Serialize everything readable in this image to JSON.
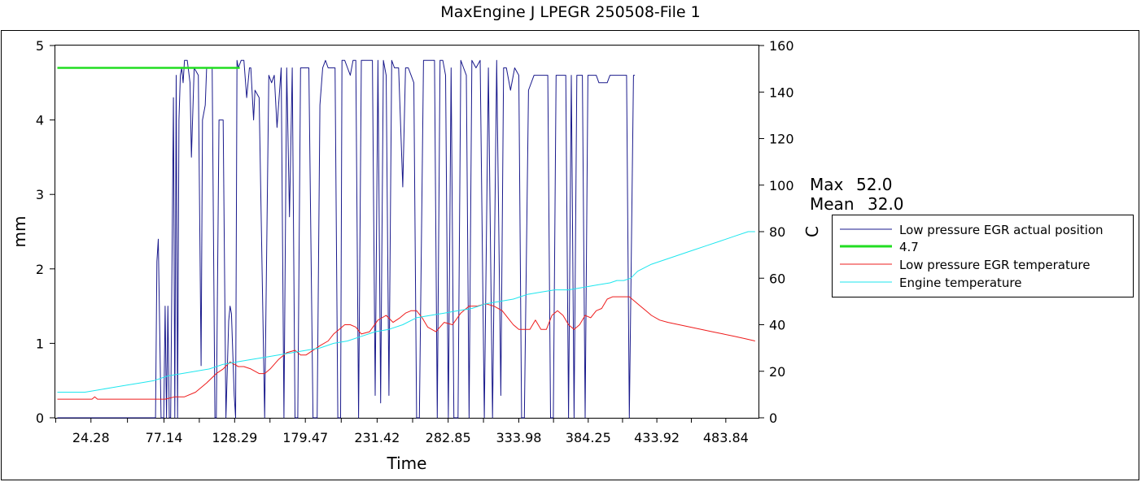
{
  "chart_data": {
    "type": "line",
    "title": "MaxEngine J LPEGR 250508-File 1",
    "xlabel": "Time",
    "ylabel_left": "mm",
    "ylabel_right": "C",
    "xlim": [
      -1.5,
      507.5
    ],
    "ylim_left": [
      0,
      5
    ],
    "ylim_right": [
      0,
      160
    ],
    "x_ticks": [
      24.28,
      77.14,
      128.29,
      179.47,
      231.42,
      282.85,
      333.98,
      384.25,
      433.92,
      483.84
    ],
    "x_tick_labels": [
      "24.28",
      "77.14",
      "128.29",
      "179.47",
      "231.42",
      "282.85",
      "333.98",
      "384.25",
      "433.92",
      "483.84"
    ],
    "y_ticks_left": [
      0,
      1,
      2,
      3,
      4,
      5
    ],
    "y_ticks_right": [
      0,
      20,
      40,
      60,
      80,
      100,
      120,
      140,
      160
    ],
    "grid": false,
    "legend_position": "right",
    "stats": [
      {
        "label": "Max",
        "value": "52.0"
      },
      {
        "label": "Mean",
        "value": "32.0"
      }
    ],
    "series": [
      {
        "name": "Low pressure EGR actual position",
        "axis": "left",
        "color": "#1a1a8c",
        "x": [
          0,
          70,
          71,
          72,
          73,
          75,
          77,
          78,
          79,
          80,
          81,
          82,
          84,
          85,
          86,
          87,
          88,
          89,
          90,
          91,
          92,
          94,
          96,
          97,
          99,
          102,
          104,
          105,
          107,
          108,
          110,
          112,
          114,
          115,
          117,
          120,
          122,
          124,
          125,
          126,
          128,
          129,
          130,
          131,
          133,
          135,
          137,
          139,
          140,
          142,
          143,
          146,
          150,
          153,
          155,
          157,
          159,
          162,
          164,
          166,
          168,
          170,
          172,
          174,
          176,
          178,
          180,
          182,
          185,
          188,
          190,
          192,
          194,
          196,
          198,
          201,
          203,
          205,
          206,
          208,
          210,
          212,
          214,
          216,
          218,
          220,
          224,
          228,
          230,
          232,
          234,
          236,
          238,
          240,
          242,
          244,
          247,
          250,
          252,
          254,
          256,
          258,
          260,
          262,
          265,
          267,
          269,
          271,
          273,
          275,
          277,
          279,
          281,
          283,
          285,
          287,
          290,
          292,
          294,
          296,
          298,
          300,
          303,
          306,
          309,
          312,
          315,
          318,
          321,
          323,
          325,
          328,
          331,
          334,
          336,
          338,
          341,
          345,
          349,
          353,
          355,
          357,
          359,
          361,
          363,
          365,
          368,
          370,
          372,
          374,
          376,
          378,
          380,
          382,
          384,
          386,
          388,
          390,
          392,
          394,
          396,
          398,
          400,
          402,
          404,
          406,
          408,
          410,
          412,
          414,
          417,
          418
        ],
        "values": [
          0,
          0,
          0,
          2.1,
          2.4,
          0,
          0,
          1.5,
          0,
          1.5,
          0,
          0,
          4.3,
          0,
          4.6,
          0,
          4.0,
          4.6,
          4.7,
          4.5,
          4.8,
          4.8,
          4.5,
          3.5,
          4.7,
          4.6,
          0.7,
          4.0,
          4.2,
          4.7,
          4.7,
          4.7,
          0,
          0,
          4.0,
          4.0,
          0,
          1.3,
          1.5,
          1.4,
          0.3,
          0,
          4.8,
          4.7,
          4.8,
          4.8,
          4.3,
          4.7,
          4.7,
          4.0,
          4.4,
          4.3,
          0,
          4.6,
          4.5,
          4.6,
          3.9,
          4.7,
          0,
          4.7,
          2.7,
          4.7,
          0,
          0,
          4.7,
          4.7,
          4.7,
          4.7,
          0,
          0,
          4.2,
          4.7,
          4.8,
          4.7,
          4.7,
          4.7,
          0,
          0,
          4.8,
          4.8,
          4.7,
          4.6,
          4.8,
          4.8,
          0,
          4.8,
          4.8,
          4.8,
          0.3,
          4.8,
          0.2,
          4.8,
          4.6,
          0.3,
          4.8,
          4.7,
          4.7,
          3.1,
          4.7,
          4.7,
          4.6,
          4.5,
          0,
          0,
          4.8,
          4.8,
          4.8,
          4.8,
          4.8,
          0,
          4.8,
          4.8,
          4.6,
          0,
          4.7,
          0,
          0,
          4.8,
          4.7,
          4.6,
          0,
          4.8,
          4.7,
          4.8,
          0,
          4.7,
          0,
          4.8,
          0.3,
          4.7,
          4.7,
          4.4,
          4.7,
          4.6,
          0,
          0,
          4.4,
          4.6,
          4.6,
          4.6,
          4.6,
          0,
          0,
          4.6,
          4.6,
          4.6,
          4.6,
          0,
          4.6,
          0,
          4.6,
          4.6,
          4.6,
          0,
          4.6,
          4.6,
          4.6,
          4.6,
          4.5,
          4.5,
          4.5,
          4.5,
          4.6,
          4.6,
          4.6,
          4.6,
          4.6,
          4.6,
          4.6,
          0,
          4.6,
          4.6
        ],
        "values_overwritten_note_free": true
      },
      {
        "name": "4.7",
        "axis": "left",
        "color": "#22dd22",
        "x": [
          0,
          132
        ],
        "values": [
          4.7,
          4.7
        ]
      },
      {
        "name": "Low pressure EGR temperature",
        "axis": "right",
        "color": "#ee1c1c",
        "x": [
          0,
          25,
          27,
          29,
          70,
          78,
          85,
          92,
          100,
          108,
          115,
          120,
          125,
          128,
          131,
          135,
          140,
          146,
          150,
          154,
          160,
          166,
          172,
          176,
          180,
          185,
          190,
          196,
          200,
          204,
          208,
          212,
          216,
          220,
          226,
          232,
          238,
          243,
          248,
          252,
          256,
          260,
          264,
          268,
          274,
          280,
          286,
          292,
          298,
          304,
          310,
          316,
          322,
          326,
          330,
          334,
          338,
          342,
          346,
          350,
          354,
          358,
          362,
          366,
          370,
          374,
          378,
          382,
          386,
          390,
          394,
          398,
          402,
          406,
          410,
          414,
          418,
          422,
          426,
          430,
          436,
          442,
          450,
          458,
          466,
          474,
          482,
          490,
          498,
          505
        ],
        "values": [
          8,
          8,
          9,
          8,
          8,
          8,
          9,
          9,
          11,
          15,
          19,
          21,
          24,
          23,
          22,
          22,
          21,
          19,
          19,
          21,
          25,
          28,
          29,
          27,
          27,
          29,
          31,
          33,
          36,
          38,
          40,
          40,
          39,
          36,
          37,
          42,
          44,
          41,
          43,
          45,
          46,
          46,
          43,
          39,
          37,
          41,
          40,
          45,
          48,
          48,
          49,
          48,
          46,
          43,
          40,
          38,
          38,
          38,
          42,
          38,
          38,
          44,
          46,
          44,
          40,
          38,
          40,
          44,
          43,
          46,
          47,
          51,
          52,
          52,
          52,
          52,
          50,
          48,
          46,
          44,
          42,
          41,
          40,
          39,
          38,
          37,
          36,
          35,
          34,
          33
        ],
        "note": ""
      },
      {
        "name": "Engine temperature",
        "axis": "right",
        "color": "#1ee6ee",
        "x": [
          0,
          20,
          30,
          40,
          50,
          60,
          70,
          80,
          90,
          100,
          110,
          120,
          130,
          140,
          150,
          160,
          170,
          180,
          190,
          200,
          210,
          220,
          230,
          240,
          250,
          260,
          270,
          280,
          290,
          300,
          310,
          320,
          330,
          340,
          350,
          360,
          370,
          380,
          390,
          400,
          405,
          410,
          415,
          420,
          430,
          440,
          450,
          460,
          470,
          480,
          490,
          500,
          505
        ],
        "values": [
          11,
          11,
          12,
          13,
          14,
          15,
          16,
          18,
          19,
          20,
          21,
          23,
          24,
          25,
          26,
          27,
          28,
          29,
          30,
          32,
          33,
          35,
          37,
          38,
          40,
          43,
          44,
          45,
          46,
          47,
          49,
          50,
          51,
          53,
          54,
          55,
          55,
          56,
          57,
          58,
          59,
          59,
          60,
          63,
          66,
          68,
          70,
          72,
          74,
          76,
          78,
          80,
          80
        ]
      }
    ]
  }
}
